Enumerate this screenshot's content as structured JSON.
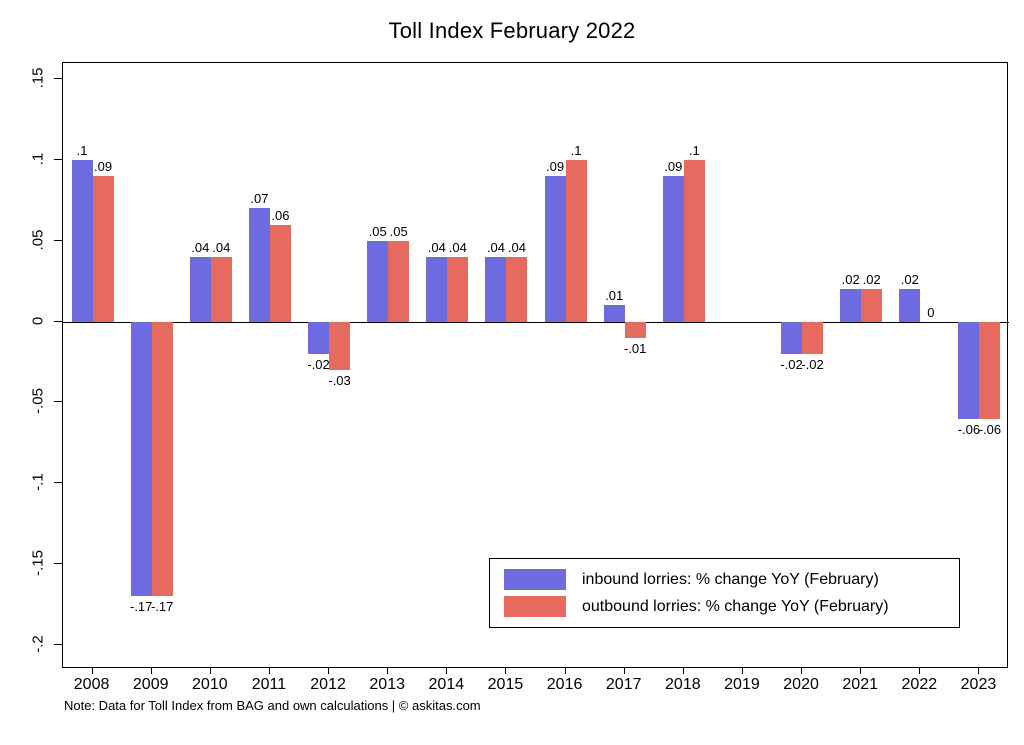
{
  "title": "Toll Index February 2022",
  "note": "Note: Data for Toll Index from BAG and own calculations | © askitas.com",
  "legend": {
    "inbound_label": "inbound lorries: % change YoY (February)",
    "outbound_label": "outbound lorries: % change YoY (February)"
  },
  "colors": {
    "inbound": "#6e6be1",
    "outbound": "#e66a5e"
  },
  "chart_data": {
    "type": "bar",
    "title": "Toll Index February 2022",
    "xlabel": "",
    "ylabel": "",
    "categories": [
      "2008",
      "2009",
      "2010",
      "2011",
      "2012",
      "2013",
      "2014",
      "2015",
      "2016",
      "2017",
      "2018",
      "2019",
      "2020",
      "2021",
      "2022",
      "2023"
    ],
    "series": [
      {
        "name": "inbound lorries: % change YoY (February)",
        "values": [
          0.1,
          -0.17,
          0.04,
          0.07,
          -0.02,
          0.05,
          0.04,
          0.04,
          0.09,
          0.01,
          0.09,
          null,
          -0.02,
          0.02,
          0.02,
          -0.06
        ],
        "labels": [
          ".1",
          "-.17",
          ".04",
          ".07",
          "-.02",
          ".05",
          ".04",
          ".04",
          ".09",
          ".01",
          ".09",
          "",
          "-.02",
          ".02",
          ".02",
          "-.06"
        ]
      },
      {
        "name": "outbound lorries: % change YoY (February)",
        "values": [
          0.09,
          -0.17,
          0.04,
          0.06,
          -0.03,
          0.05,
          0.04,
          0.04,
          0.1,
          -0.01,
          0.1,
          null,
          -0.02,
          0.02,
          0,
          -0.06
        ],
        "labels": [
          ".09",
          "-.17",
          ".04",
          ".06",
          "-.03",
          ".05",
          ".04",
          ".04",
          ".1",
          "-.01",
          ".1",
          "",
          "-.02",
          ".02",
          "0",
          "-.06"
        ]
      }
    ],
    "yticks": [
      {
        "v": 0.15,
        "label": ".15"
      },
      {
        "v": 0.1,
        "label": ".1"
      },
      {
        "v": 0.05,
        "label": ".05"
      },
      {
        "v": 0,
        "label": "0"
      },
      {
        "v": -0.05,
        "label": "-.05"
      },
      {
        "v": -0.1,
        "label": "-.1"
      },
      {
        "v": -0.15,
        "label": "-.15"
      },
      {
        "v": -0.2,
        "label": "-.2"
      }
    ],
    "ylim": [
      -0.215,
      0.16
    ],
    "grid": false,
    "legend_position": "inside bottom-right"
  }
}
